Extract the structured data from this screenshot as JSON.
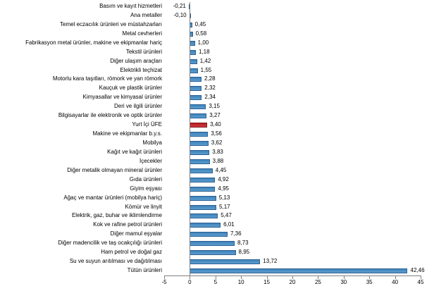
{
  "chart_data": {
    "type": "bar",
    "orientation": "horizontal",
    "title": "",
    "xlabel": "",
    "ylabel": "",
    "xlim": [
      -5,
      45
    ],
    "xticks": [
      -5,
      0,
      5,
      10,
      15,
      20,
      25,
      30,
      35,
      40,
      45
    ],
    "grid": false,
    "legend": false,
    "decimal_separator": ",",
    "bar_color": "#4a8fc4",
    "bar_border_color": "#2b5f92",
    "highlight_color": "#c22a2e",
    "highlight_border_color": "#82181b",
    "highlight_category": "Yurt İçi ÜFE",
    "categories": [
      "Basım ve kayıt hizmetleri",
      "Ana metaller",
      "Temel eczacılık ürünleri ve müstahzarları",
      "Metal cevherleri",
      "Fabrikasyon metal ürünler, makine ve ekipmanlar hariç",
      "Tekstil ürünleri",
      "Diğer ulaşım araçları",
      "Elektrikli teçhizat",
      "Motorlu kara taşıtları, römork ve yan römork",
      "Kauçuk ve plastik ürünler",
      "Kimyasallar ve kimyasal ürünler",
      "Deri ve ilgili ürünler",
      "Bilgisayarlar ile elektronik ve optik ürünler",
      "Yurt İçi ÜFE",
      "Makine ve ekipmanlar b.y.s.",
      "Mobilya",
      "Kağıt ve kağıt ürünleri",
      "İçecekler",
      "Diğer metalik olmayan mineral ürünler",
      "Gıda ürünleri",
      "Giyim eşyası",
      "Ağaç ve mantar ürünleri (mobilya hariç)",
      "Kömür ve linyit",
      "Elektrik, gaz, buhar ve iklimlendirme",
      "Kok ve rafine petrol ürünleri",
      "Diğer mamul eşyalar",
      "Diğer madencilik ve taş ocakçılığı ürünleri",
      "Ham petrol ve doğal gaz",
      "Su ve suyun arıtılması ve dağıtılması",
      "Tütün ürünleri"
    ],
    "values": [
      -0.21,
      -0.1,
      0.45,
      0.58,
      1.0,
      1.18,
      1.42,
      1.55,
      2.28,
      2.32,
      2.34,
      3.15,
      3.27,
      3.4,
      3.56,
      3.62,
      3.83,
      3.88,
      4.45,
      4.92,
      4.95,
      5.13,
      5.17,
      5.47,
      6.01,
      7.36,
      8.73,
      8.95,
      13.72,
      42.46
    ],
    "value_labels": [
      "-0,21",
      "-0,10",
      "0,45",
      "0,58",
      "1,00",
      "1,18",
      "1,42",
      "1,55",
      "2,28",
      "2,32",
      "2,34",
      "3,15",
      "3,27",
      "3,40",
      "3,56",
      "3,62",
      "3,83",
      "3,88",
      "4,45",
      "4,92",
      "4,95",
      "5,13",
      "5,17",
      "5,47",
      "6,01",
      "7,36",
      "8,73",
      "8,95",
      "13,72",
      "42,46"
    ]
  }
}
